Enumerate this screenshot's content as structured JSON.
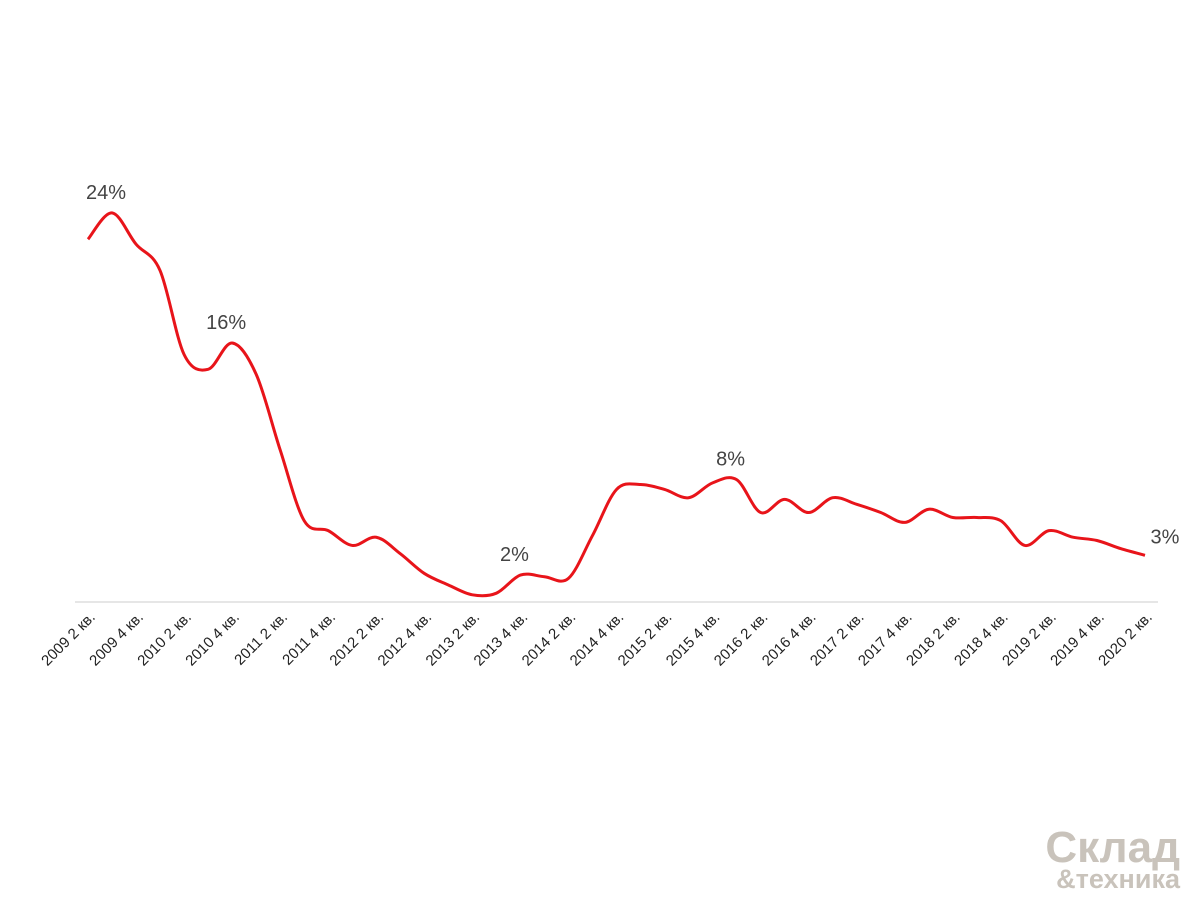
{
  "chart_data": {
    "type": "line",
    "categories": [
      "2009 2 кв.",
      null,
      "2009 4 кв.",
      null,
      "2010 2 кв.",
      null,
      "2010 4 кв.",
      null,
      "2011 2 кв.",
      null,
      "2011 4 кв.",
      null,
      "2012 2 кв.",
      null,
      "2012 4 кв.",
      null,
      "2013 2 кв.",
      null,
      "2013 4 кв.",
      null,
      "2014 2 кв.",
      null,
      "2014 4 кв.",
      null,
      "2015 2 кв.",
      null,
      "2015 4 кв.",
      null,
      "2016 2 кв.",
      null,
      "2016 4 кв.",
      null,
      "2017 2 кв.",
      null,
      "2017 4 кв.",
      null,
      "2018 2 кв.",
      null,
      "2018 4 кв.",
      null,
      "2019 2 кв.",
      null,
      "2019 4 кв.",
      null,
      "2020 2 кв."
    ],
    "values": [
      22.4,
      24,
      22.1,
      20.5,
      15.4,
      14.5,
      16.1,
      14.2,
      9.6,
      5.3,
      4.7,
      3.8,
      4.3,
      3.3,
      2.1,
      1.4,
      0.8,
      0.9,
      2,
      1.9,
      1.8,
      4.4,
      7.2,
      7.5,
      7.2,
      6.7,
      7.6,
      7.8,
      5.8,
      6.6,
      5.8,
      6.7,
      6.3,
      5.8,
      5.2,
      6.0,
      5.5,
      5.5,
      5.3,
      3.8,
      4.7,
      4.3,
      4.1,
      3.6,
      3.2
    ],
    "value_labels": [
      null,
      "24%",
      null,
      null,
      null,
      null,
      "16%",
      null,
      null,
      null,
      null,
      null,
      null,
      null,
      null,
      null,
      null,
      null,
      "2%",
      null,
      null,
      null,
      null,
      null,
      null,
      null,
      null,
      "8%",
      null,
      null,
      null,
      null,
      null,
      null,
      null,
      null,
      null,
      null,
      null,
      null,
      null,
      null,
      null,
      null,
      "3%"
    ],
    "color": "#e8141a",
    "ylim": [
      0,
      26
    ],
    "logo": [
      "Склад",
      "&техника"
    ]
  }
}
